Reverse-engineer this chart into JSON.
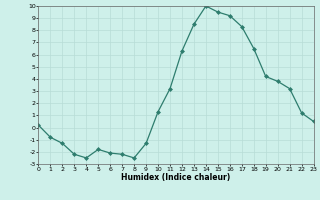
{
  "x": [
    0,
    1,
    2,
    3,
    4,
    5,
    6,
    7,
    8,
    9,
    10,
    11,
    12,
    13,
    14,
    15,
    16,
    17,
    18,
    19,
    20,
    21,
    22,
    23
  ],
  "y": [
    0.2,
    -0.8,
    -1.3,
    -2.2,
    -2.5,
    -1.8,
    -2.1,
    -2.2,
    -2.5,
    -1.3,
    1.3,
    3.2,
    6.3,
    8.5,
    10.0,
    9.5,
    9.2,
    8.3,
    6.5,
    4.2,
    3.8,
    3.2,
    1.2,
    0.5
  ],
  "xlabel": "Humidex (Indice chaleur)",
  "ylim": [
    -3,
    10
  ],
  "xlim": [
    0,
    23
  ],
  "yticks": [
    -3,
    -2,
    -1,
    0,
    1,
    2,
    3,
    4,
    5,
    6,
    7,
    8,
    9,
    10
  ],
  "xticks": [
    0,
    1,
    2,
    3,
    4,
    5,
    6,
    7,
    8,
    9,
    10,
    11,
    12,
    13,
    14,
    15,
    16,
    17,
    18,
    19,
    20,
    21,
    22,
    23
  ],
  "line_color": "#2e7d6e",
  "marker_color": "#2e7d6e",
  "bg_color": "#cef0ea",
  "grid_color": "#b8ddd7",
  "title": ""
}
